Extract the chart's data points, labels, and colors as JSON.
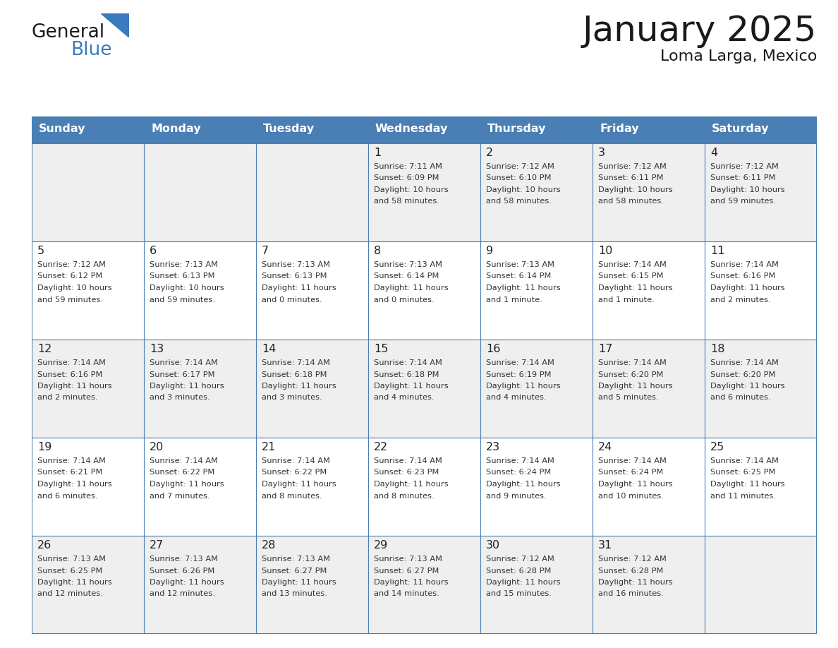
{
  "title": "January 2025",
  "subtitle": "Loma Larga, Mexico",
  "header_color": "#4a7fb5",
  "header_text_color": "#FFFFFF",
  "cell_bg_even": "#EFEFEF",
  "cell_bg_odd": "#FFFFFF",
  "border_color": "#4a7fb5",
  "text_color": "#222222",
  "info_color": "#333333",
  "day_names": [
    "Sunday",
    "Monday",
    "Tuesday",
    "Wednesday",
    "Thursday",
    "Friday",
    "Saturday"
  ],
  "logo_black": "#1a1a1a",
  "logo_blue": "#3a7bbf",
  "calendar_data": [
    [
      {
        "day": null,
        "info": null
      },
      {
        "day": null,
        "info": null
      },
      {
        "day": null,
        "info": null
      },
      {
        "day": 1,
        "sunrise": "7:11 AM",
        "sunset": "6:09 PM",
        "daylight": "10 hours",
        "daylight2": "and 58 minutes."
      },
      {
        "day": 2,
        "sunrise": "7:12 AM",
        "sunset": "6:10 PM",
        "daylight": "10 hours",
        "daylight2": "and 58 minutes."
      },
      {
        "day": 3,
        "sunrise": "7:12 AM",
        "sunset": "6:11 PM",
        "daylight": "10 hours",
        "daylight2": "and 58 minutes."
      },
      {
        "day": 4,
        "sunrise": "7:12 AM",
        "sunset": "6:11 PM",
        "daylight": "10 hours",
        "daylight2": "and 59 minutes."
      }
    ],
    [
      {
        "day": 5,
        "sunrise": "7:12 AM",
        "sunset": "6:12 PM",
        "daylight": "10 hours",
        "daylight2": "and 59 minutes."
      },
      {
        "day": 6,
        "sunrise": "7:13 AM",
        "sunset": "6:13 PM",
        "daylight": "10 hours",
        "daylight2": "and 59 minutes."
      },
      {
        "day": 7,
        "sunrise": "7:13 AM",
        "sunset": "6:13 PM",
        "daylight": "11 hours",
        "daylight2": "and 0 minutes."
      },
      {
        "day": 8,
        "sunrise": "7:13 AM",
        "sunset": "6:14 PM",
        "daylight": "11 hours",
        "daylight2": "and 0 minutes."
      },
      {
        "day": 9,
        "sunrise": "7:13 AM",
        "sunset": "6:14 PM",
        "daylight": "11 hours",
        "daylight2": "and 1 minute."
      },
      {
        "day": 10,
        "sunrise": "7:14 AM",
        "sunset": "6:15 PM",
        "daylight": "11 hours",
        "daylight2": "and 1 minute."
      },
      {
        "day": 11,
        "sunrise": "7:14 AM",
        "sunset": "6:16 PM",
        "daylight": "11 hours",
        "daylight2": "and 2 minutes."
      }
    ],
    [
      {
        "day": 12,
        "sunrise": "7:14 AM",
        "sunset": "6:16 PM",
        "daylight": "11 hours",
        "daylight2": "and 2 minutes."
      },
      {
        "day": 13,
        "sunrise": "7:14 AM",
        "sunset": "6:17 PM",
        "daylight": "11 hours",
        "daylight2": "and 3 minutes."
      },
      {
        "day": 14,
        "sunrise": "7:14 AM",
        "sunset": "6:18 PM",
        "daylight": "11 hours",
        "daylight2": "and 3 minutes."
      },
      {
        "day": 15,
        "sunrise": "7:14 AM",
        "sunset": "6:18 PM",
        "daylight": "11 hours",
        "daylight2": "and 4 minutes."
      },
      {
        "day": 16,
        "sunrise": "7:14 AM",
        "sunset": "6:19 PM",
        "daylight": "11 hours",
        "daylight2": "and 4 minutes."
      },
      {
        "day": 17,
        "sunrise": "7:14 AM",
        "sunset": "6:20 PM",
        "daylight": "11 hours",
        "daylight2": "and 5 minutes."
      },
      {
        "day": 18,
        "sunrise": "7:14 AM",
        "sunset": "6:20 PM",
        "daylight": "11 hours",
        "daylight2": "and 6 minutes."
      }
    ],
    [
      {
        "day": 19,
        "sunrise": "7:14 AM",
        "sunset": "6:21 PM",
        "daylight": "11 hours",
        "daylight2": "and 6 minutes."
      },
      {
        "day": 20,
        "sunrise": "7:14 AM",
        "sunset": "6:22 PM",
        "daylight": "11 hours",
        "daylight2": "and 7 minutes."
      },
      {
        "day": 21,
        "sunrise": "7:14 AM",
        "sunset": "6:22 PM",
        "daylight": "11 hours",
        "daylight2": "and 8 minutes."
      },
      {
        "day": 22,
        "sunrise": "7:14 AM",
        "sunset": "6:23 PM",
        "daylight": "11 hours",
        "daylight2": "and 8 minutes."
      },
      {
        "day": 23,
        "sunrise": "7:14 AM",
        "sunset": "6:24 PM",
        "daylight": "11 hours",
        "daylight2": "and 9 minutes."
      },
      {
        "day": 24,
        "sunrise": "7:14 AM",
        "sunset": "6:24 PM",
        "daylight": "11 hours",
        "daylight2": "and 10 minutes."
      },
      {
        "day": 25,
        "sunrise": "7:14 AM",
        "sunset": "6:25 PM",
        "daylight": "11 hours",
        "daylight2": "and 11 minutes."
      }
    ],
    [
      {
        "day": 26,
        "sunrise": "7:13 AM",
        "sunset": "6:25 PM",
        "daylight": "11 hours",
        "daylight2": "and 12 minutes."
      },
      {
        "day": 27,
        "sunrise": "7:13 AM",
        "sunset": "6:26 PM",
        "daylight": "11 hours",
        "daylight2": "and 12 minutes."
      },
      {
        "day": 28,
        "sunrise": "7:13 AM",
        "sunset": "6:27 PM",
        "daylight": "11 hours",
        "daylight2": "and 13 minutes."
      },
      {
        "day": 29,
        "sunrise": "7:13 AM",
        "sunset": "6:27 PM",
        "daylight": "11 hours",
        "daylight2": "and 14 minutes."
      },
      {
        "day": 30,
        "sunrise": "7:12 AM",
        "sunset": "6:28 PM",
        "daylight": "11 hours",
        "daylight2": "and 15 minutes."
      },
      {
        "day": 31,
        "sunrise": "7:12 AM",
        "sunset": "6:28 PM",
        "daylight": "11 hours",
        "daylight2": "and 16 minutes."
      },
      {
        "day": null,
        "info": null
      }
    ]
  ]
}
